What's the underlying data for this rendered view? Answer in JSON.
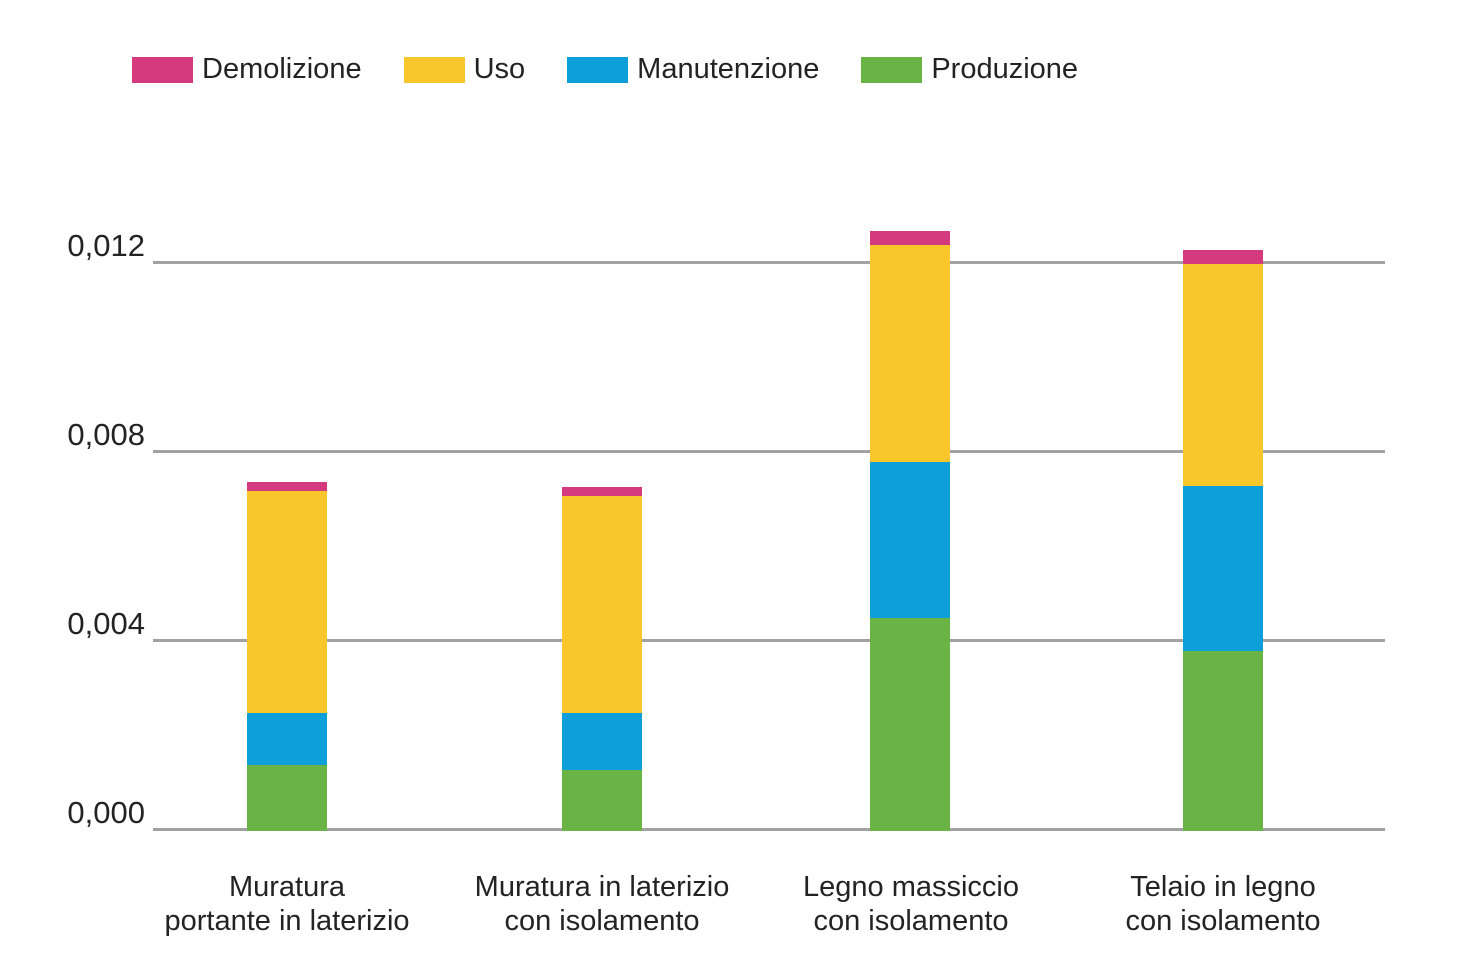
{
  "legend": {
    "items": [
      {
        "label": "Demolizione",
        "color": "#d63a7e"
      },
      {
        "label": "Uso",
        "color": "#f9c62b"
      },
      {
        "label": "Manutenzione",
        "color": "#0d9fd9"
      },
      {
        "label": "Produzione",
        "color": "#6ab446"
      }
    ]
  },
  "colors": {
    "demolizione": "#d63a7e",
    "uso": "#f9c62b",
    "manutenzione": "#0d9fd9",
    "produzione": "#6ab446",
    "gridline": "#a2a2a2",
    "text": "#232323"
  },
  "chart_data": {
    "type": "bar",
    "stacked": true,
    "title": "",
    "xlabel": "",
    "ylabel": "",
    "categories": [
      "Muratura portante in laterizio",
      "Muratura in laterizio con isolamento",
      "Legno massiccio con isolamento",
      "Telaio in legno con isolamento"
    ],
    "category_lines": [
      [
        "Muratura",
        "portante in laterizio"
      ],
      [
        "Muratura in laterizio",
        "con isolamento"
      ],
      [
        "Legno massiccio",
        "con isolamento"
      ],
      [
        "Telaio in legno",
        "con isolamento"
      ]
    ],
    "series": [
      {
        "name": "Produzione",
        "color": "#6ab446",
        "values": [
          0.0014,
          0.0013,
          0.0045,
          0.0038
        ]
      },
      {
        "name": "Manutenzione",
        "color": "#0d9fd9",
        "values": [
          0.0011,
          0.0012,
          0.0033,
          0.0035
        ]
      },
      {
        "name": "Uso",
        "color": "#f9c62b",
        "values": [
          0.0047,
          0.0046,
          0.0046,
          0.0047
        ]
      },
      {
        "name": "Demolizione",
        "color": "#d63a7e",
        "values": [
          0.0002,
          0.0002,
          0.0003,
          0.0003
        ]
      }
    ],
    "stack_totals": [
      0.0074,
      0.0073,
      0.0127,
      0.0123
    ],
    "y_ticks": [
      {
        "label": "0,000",
        "value": 0.0
      },
      {
        "label": "0,004",
        "value": 0.004
      },
      {
        "label": "0,008",
        "value": 0.008
      },
      {
        "label": "0,012",
        "value": 0.012
      }
    ],
    "ylim": [
      0,
      0.0135
    ],
    "grid": "horizontal",
    "legend_position": "top",
    "legend_order": [
      "Demolizione",
      "Uso",
      "Manutenzione",
      "Produzione"
    ],
    "decimal_separator": ","
  }
}
